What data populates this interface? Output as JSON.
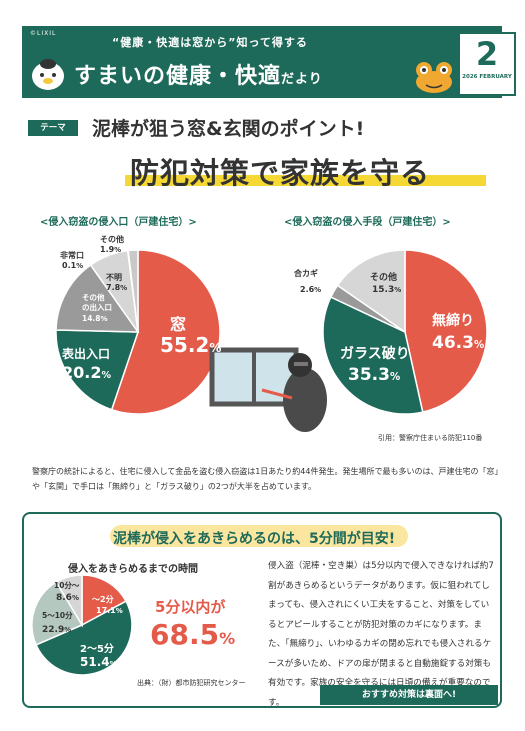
{
  "header": {
    "logo": "©LIXIL",
    "tagline": "“健康・快適は窓から”知って得する",
    "brand_main": "すまいの健康・快適",
    "brand_suffix": "だより",
    "issue_number": "2",
    "issue_date": "2026 FEBRUARY",
    "color": "#1e6a5a"
  },
  "theme": {
    "tag": "テーマ",
    "subtitle": "泥棒が狙う窓&玄関のポイント!",
    "title": "防犯対策で家族を守る",
    "underline_color": "#f5d833"
  },
  "chart_data": [
    {
      "type": "pie",
      "title": "<侵入窃盗の侵入口（戸建住宅）>",
      "unit": "%",
      "slices": [
        {
          "label": "窓",
          "value": 55.2,
          "color": "#e55b4a"
        },
        {
          "label": "表出入口",
          "value": 20.2,
          "color": "#1e6a5a"
        },
        {
          "label": "その他の出入口",
          "value": 14.8,
          "color": "#9a9a9a"
        },
        {
          "label": "不明",
          "value": 7.8,
          "color": "#d6d6d6"
        },
        {
          "label": "非常口",
          "value": 0.1,
          "color": "#bdbdbd"
        },
        {
          "label": "その他",
          "value": 1.9,
          "color": "#c9c9c9"
        }
      ]
    },
    {
      "type": "pie",
      "title": "<侵入窃盗の侵入手段（戸建住宅）>",
      "unit": "%",
      "slices": [
        {
          "label": "無締り",
          "value": 46.3,
          "color": "#e55b4a"
        },
        {
          "label": "ガラス破り",
          "value": 35.3,
          "color": "#1e6a5a"
        },
        {
          "label": "合カギ",
          "value": 2.6,
          "color": "#9a9a9a"
        },
        {
          "label": "その他",
          "value": 15.3,
          "color": "#d6d6d6"
        }
      ]
    },
    {
      "type": "pie",
      "title": "侵入をあきらめるまでの時間",
      "unit": "%",
      "slices": [
        {
          "label": "～2分",
          "value": 17.1,
          "color": "#e55b4a"
        },
        {
          "label": "2～5分",
          "value": 51.4,
          "color": "#1e6a5a"
        },
        {
          "label": "5～10分",
          "value": 22.9,
          "color": "#b5c8c0"
        },
        {
          "label": "10分～",
          "value": 8.6,
          "color": "#d6d6d6"
        }
      ]
    }
  ],
  "citation": "引用：警察庁住まいる防犯110番",
  "stats_text": "警察庁の統計によると、住宅に侵入して金品を盗む侵入窃盗は1日あたり約44件発生。発生場所で最も多いのは、戸建住宅の「窓」や「玄関」で手口は「無締り」と「ガラス破り」の2つが大半を占めています。",
  "bottom": {
    "title": "泥棒が侵入をあきらめるのは、5分間が目安!",
    "highlight_color": "#fbe6a0",
    "within_label": "5分以内が",
    "within_value": "68.5",
    "within_unit": "%",
    "source": "出典：（財）都市防犯研究センター",
    "body": "侵入盗（泥棒・空き巣）は5分以内で侵入できなければ約7割があきらめるというデータがあります。仮に狙われてしまっても、侵入されにくい工夫をすること、対策をしているとアピールすることが防犯対策のカギになります。また、「無締り」、いわゆるカギの閉め忘れでも侵入されるケースが多いため、ドアの扉が閉まると自動施錠する対策も有効です。家族の安全を守るには日頃の備えが重要なのです。",
    "cta": "おすすめ対策は裏面へ!"
  }
}
